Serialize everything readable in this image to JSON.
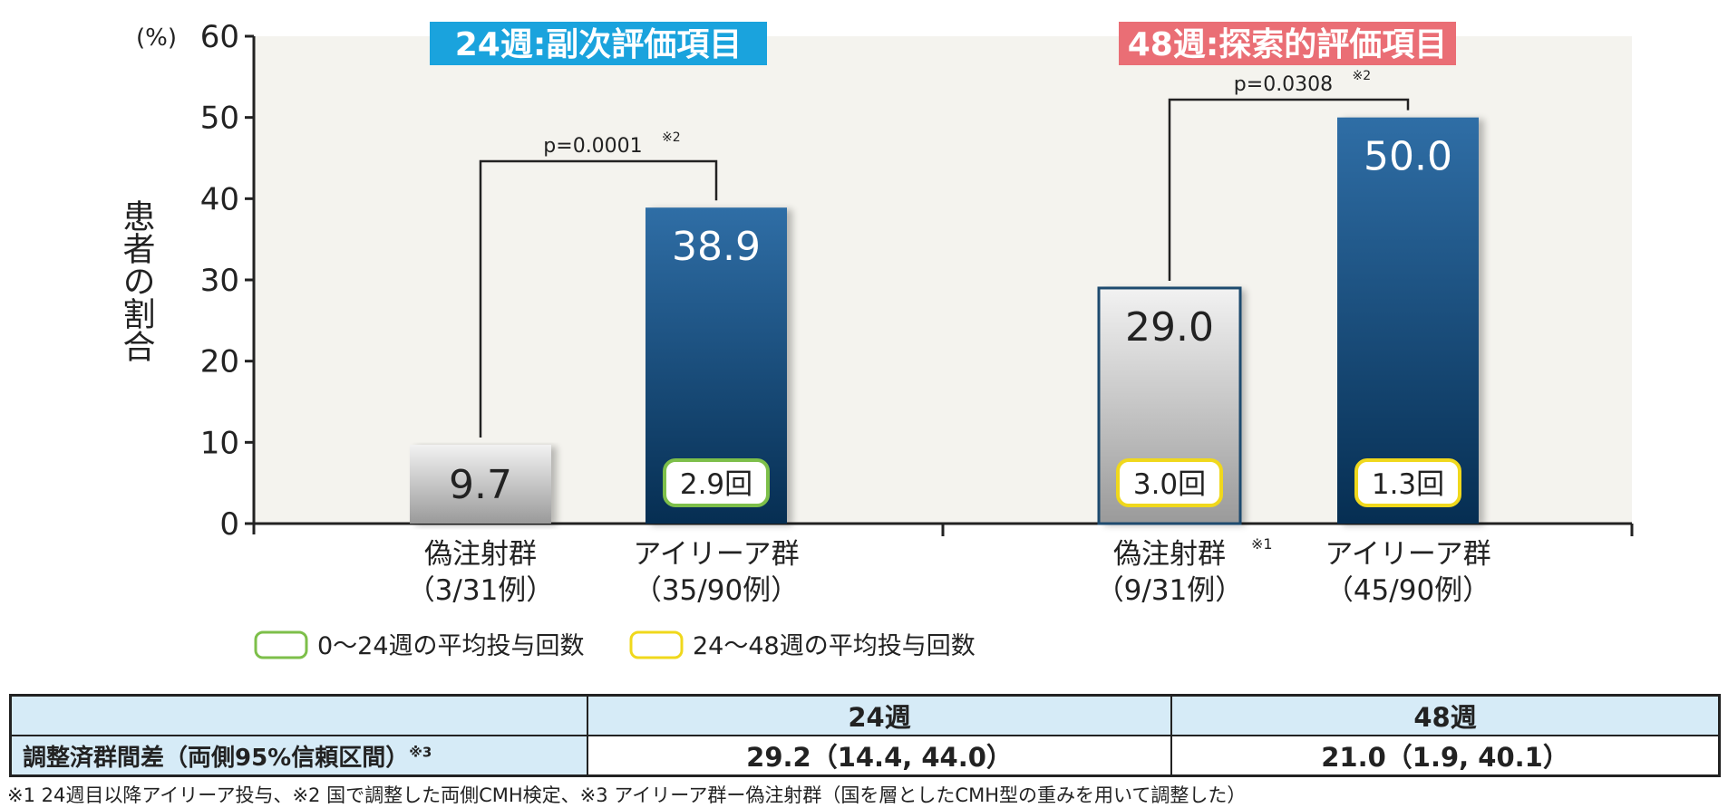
{
  "chart_data": {
    "type": "bar",
    "y_unit": "(%)",
    "ylabel": "患者の割合",
    "ylim": [
      0,
      60
    ],
    "yticks": [
      0,
      10,
      20,
      30,
      40,
      50,
      60
    ],
    "panels": [
      {
        "title": "24週:副次評価項目",
        "title_color": "#1aa3dd",
        "pvalue": "p=0.0001",
        "pvalue_note": "※2",
        "bars": [
          {
            "name": "偽注射群",
            "note": "",
            "sub": "（3/31例）",
            "value": 9.7,
            "label": "9.7",
            "style": "gray",
            "dose": null
          },
          {
            "name": "アイリーア群",
            "note": "",
            "sub": "（35/90例）",
            "value": 38.9,
            "label": "38.9",
            "style": "blue",
            "dose": {
              "label": "2.9回",
              "color": "#7dbf4a"
            }
          }
        ]
      },
      {
        "title": "48週:探索的評価項目",
        "title_color": "#ea6e75",
        "pvalue": "p=0.0308",
        "pvalue_note": "※2",
        "bars": [
          {
            "name": "偽注射群",
            "note": "※1",
            "sub": "（9/31例）",
            "value": 29.0,
            "label": "29.0",
            "style": "gray-outline",
            "dose": {
              "label": "3.0回",
              "color": "#f0d81c"
            }
          },
          {
            "name": "アイリーア群",
            "note": "",
            "sub": "（45/90例）",
            "value": 50.0,
            "label": "50.0",
            "style": "blue",
            "dose": {
              "label": "1.3回",
              "color": "#f0d81c"
            }
          }
        ]
      }
    ],
    "legend": [
      {
        "label": "0〜24週の平均投与回数",
        "color": "#7dbf4a"
      },
      {
        "label": "24〜48週の平均投与回数",
        "color": "#f0d81c"
      }
    ]
  },
  "table": {
    "headers": [
      "",
      "24週",
      "48週"
    ],
    "row_label": "調整済群間差（両側95%信頼区間）",
    "row_label_note": "※3",
    "values": [
      "29.2（14.4, 44.0）",
      "21.0（1.9, 40.1）"
    ]
  },
  "footnote": "※1 24週目以降アイリーア投与、※2 国で調整した両側CMH検定、※3 アイリーア群ー偽注射群（国を層としたCMH型の重みを用いて調整した）",
  "colors": {
    "plot_bg": "#f4f3ee",
    "bar_blue_top": "#2f6ea6",
    "bar_blue_bottom": "#062e52",
    "bar_gray_top": "#f2f2f2",
    "bar_gray_bottom": "#9a9a9a",
    "outline": "#1d4a6e",
    "table_header": "#d6ebf7"
  }
}
